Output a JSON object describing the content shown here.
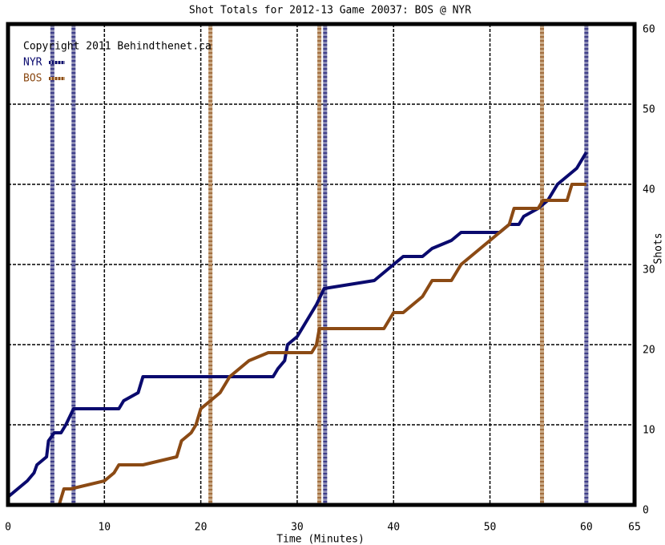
{
  "chart_data": {
    "type": "line",
    "title": "Shot Totals for 2012-13 Game 20037: BOS @ NYR",
    "annotation": "Copyright 2011 Behindthenet.ca",
    "xlabel": "Time (Minutes)",
    "ylabel": "Shots",
    "xlim": [
      0,
      65
    ],
    "xticks": [
      0,
      10,
      20,
      30,
      40,
      50,
      60,
      65
    ],
    "ylim": [
      0,
      60
    ],
    "yticks": [
      0,
      10,
      20,
      30,
      40,
      50,
      60
    ],
    "grid": true,
    "legend": "top-left",
    "series": [
      {
        "name": "NYR",
        "color": "#0a0a6e",
        "goal_color": "#8c8cb4",
        "x": [
          0,
          1,
          2,
          2.7,
          3,
          4,
          4.2,
          4.8,
          5.5,
          6,
          6.8,
          11.5,
          12,
          13.5,
          14,
          27.5,
          28,
          28.7,
          29,
          30,
          31,
          31.5,
          32,
          32.8,
          38,
          39,
          40,
          41,
          43,
          44,
          46,
          47,
          51,
          52,
          53,
          53.5,
          55,
          56,
          57,
          58,
          59,
          60
        ],
        "values": [
          1,
          2,
          3,
          4,
          5,
          6,
          8,
          9,
          9,
          10,
          12,
          12,
          13,
          14,
          16,
          16,
          17,
          18,
          20,
          21,
          23,
          24,
          25,
          27,
          28,
          29,
          30,
          31,
          31,
          32,
          33,
          34,
          34,
          35,
          35,
          36,
          37,
          38,
          40,
          41,
          42,
          44
        ],
        "goals": [
          4.6,
          6.8,
          32.9,
          60
        ]
      },
      {
        "name": "BOS",
        "color": "#8b4a14",
        "goal_color": "#c8a884",
        "x": [
          0,
          5.3,
          5.8,
          6.5,
          10,
          11,
          11.5,
          14,
          17.5,
          18,
          19,
          19.5,
          20,
          21,
          22,
          23,
          24,
          25,
          27,
          31.5,
          32,
          32.3,
          39,
          39.5,
          40,
          41,
          42,
          43,
          43.5,
          44,
          46,
          47,
          48,
          49,
          51,
          52,
          52.5,
          55,
          55.5,
          58,
          58.5,
          60
        ],
        "values": [
          0,
          0,
          2,
          2,
          3,
          4,
          5,
          5,
          6,
          8,
          9,
          10,
          12,
          13,
          14,
          16,
          17,
          18,
          19,
          19,
          20,
          22,
          22,
          23,
          24,
          24,
          25,
          26,
          27,
          28,
          28,
          30,
          31,
          32,
          34,
          35,
          37,
          37,
          38,
          38,
          40,
          40
        ],
        "goals": [
          21,
          32.3,
          55.4
        ]
      }
    ]
  }
}
